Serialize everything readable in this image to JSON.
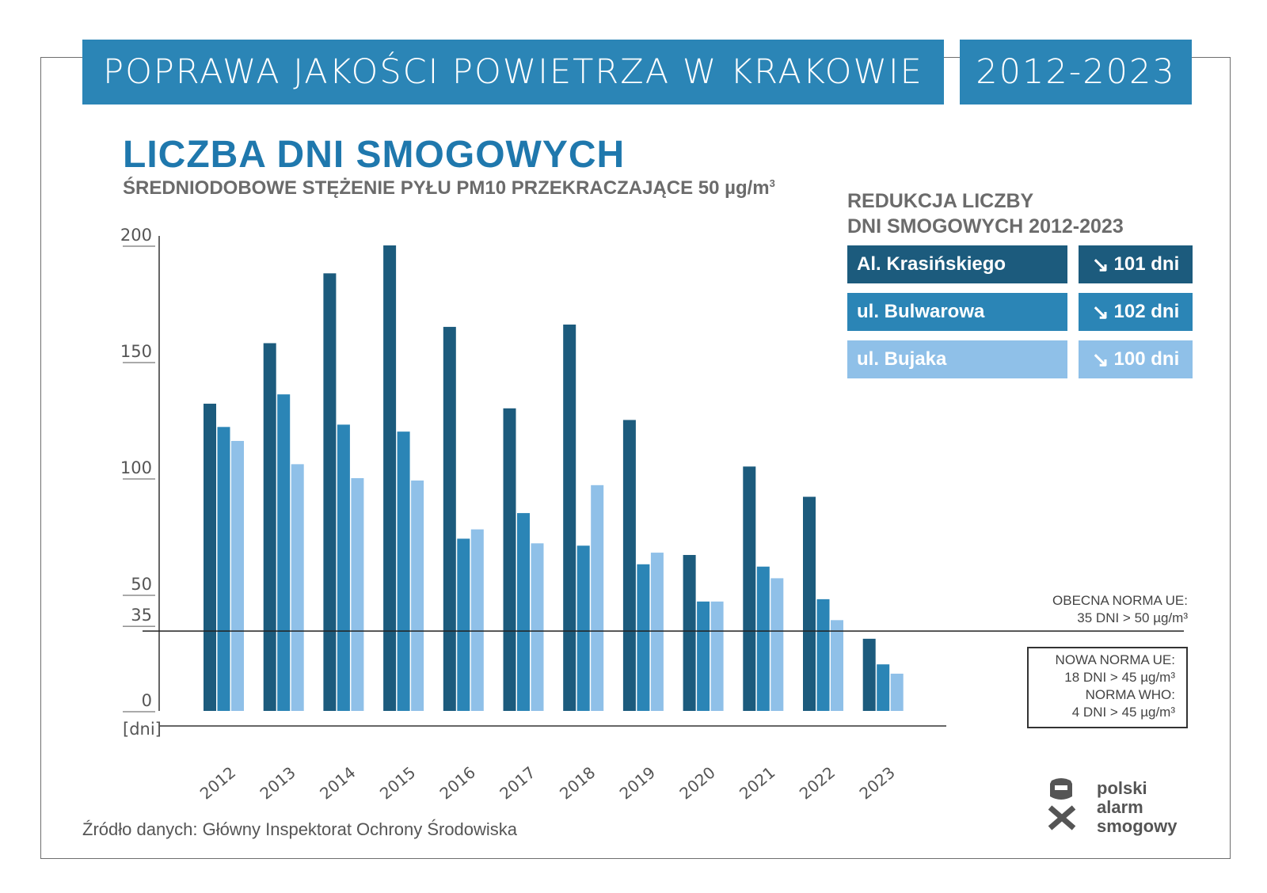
{
  "header": {
    "title": "POPRAWA JAKOŚCI POWIETRZA W KRAKOWIE",
    "years": "2012-2023"
  },
  "chart_data": {
    "type": "bar",
    "title": "LICZBA DNI SMOGOWYCH",
    "subtitle_prefix": "ŚREDNIODOBOWE STĘŻENIE PYŁU PM10 PRZEKRACZAJĄCE 50 µg/m",
    "subtitle_sup": "3",
    "ylabel": "[dni]",
    "ylim": [
      0,
      200
    ],
    "yticks": [
      "200",
      "150",
      "100",
      "50",
      "35",
      "0"
    ],
    "ytick_values": [
      200,
      150,
      100,
      50,
      35,
      0
    ],
    "categories": [
      "2012",
      "2013",
      "2014",
      "2015",
      "2016",
      "2017",
      "2018",
      "2019",
      "2020",
      "2021",
      "2022",
      "2023"
    ],
    "series": [
      {
        "name": "Al. Krasińskiego",
        "color": "#1c5b7d",
        "values": [
          132,
          158,
          188,
          200,
          165,
          130,
          166,
          125,
          67,
          105,
          92,
          31
        ]
      },
      {
        "name": "ul. Bulwarowa",
        "color": "#2b85b6",
        "values": [
          122,
          136,
          123,
          120,
          74,
          85,
          71,
          63,
          47,
          62,
          48,
          20
        ]
      },
      {
        "name": "ul. Bujaka",
        "color": "#8fc0e8",
        "values": [
          116,
          106,
          100,
          99,
          78,
          72,
          97,
          68,
          47,
          57,
          39,
          16
        ]
      }
    ],
    "reference_line": 35,
    "grid": false
  },
  "reduction": {
    "title_line1": "REDUKCJA LICZBY",
    "title_line2": "DNI SMOGOWYCH 2012-2023",
    "rows": [
      {
        "name": "Al. Krasińskiego",
        "value": "101 dni",
        "color": "#1c5b7d"
      },
      {
        "name": "ul. Bulwarowa",
        "value": "102 dni",
        "color": "#2b85b6"
      },
      {
        "name": "ul. Bujaka",
        "value": "100 dni",
        "color": "#8fc0e8"
      }
    ]
  },
  "norms": {
    "current_line1": "OBECNA NORMA UE:",
    "current_line2": "35 DNI > 50 µg/m³",
    "new_line1": "NOWA NORMA UE:",
    "new_line2": "18 DNI > 45 µg/m³",
    "who_line1": "NORMA WHO:",
    "who_line2": "4 DNI > 45 µg/m³"
  },
  "source": "Źródło danych: Główny Inspektorat Ochrony Środowiska",
  "logo": {
    "line1": "polski",
    "line2": "alarm",
    "line3": "smogowy",
    "icon": "smog-mask-logo-icon"
  }
}
